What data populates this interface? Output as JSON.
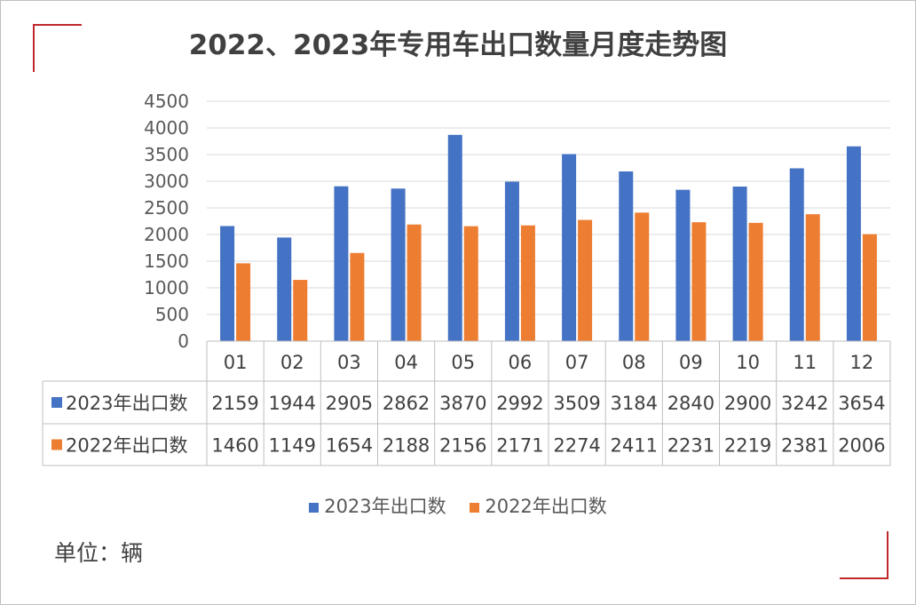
{
  "colors": {
    "series_2023": "#4472c4",
    "series_2022": "#ed7d31",
    "grid": "#d9d9d9",
    "accent": "#c0282d"
  },
  "unit_note": "单位：辆",
  "chart_data": {
    "type": "bar",
    "title": "2022、2023年专用车出口数量月度走势图",
    "categories": [
      "01",
      "02",
      "03",
      "04",
      "05",
      "06",
      "07",
      "08",
      "09",
      "10",
      "11",
      "12"
    ],
    "series": [
      {
        "name": "2023年出口数",
        "color": "#4472c4",
        "values": [
          2159,
          1944,
          2905,
          2862,
          3870,
          2992,
          3509,
          3184,
          2840,
          2900,
          3242,
          3654
        ]
      },
      {
        "name": "2022年出口数",
        "color": "#ed7d31",
        "values": [
          1460,
          1149,
          1654,
          2188,
          2156,
          2171,
          2274,
          2411,
          2231,
          2219,
          2381,
          2006
        ]
      }
    ],
    "ylim": [
      0,
      4500
    ],
    "yticks": [
      0,
      500,
      1000,
      1500,
      2000,
      2500,
      3000,
      3500,
      4000,
      4500
    ],
    "grid": true,
    "legend_position": "bottom",
    "data_table": true
  }
}
